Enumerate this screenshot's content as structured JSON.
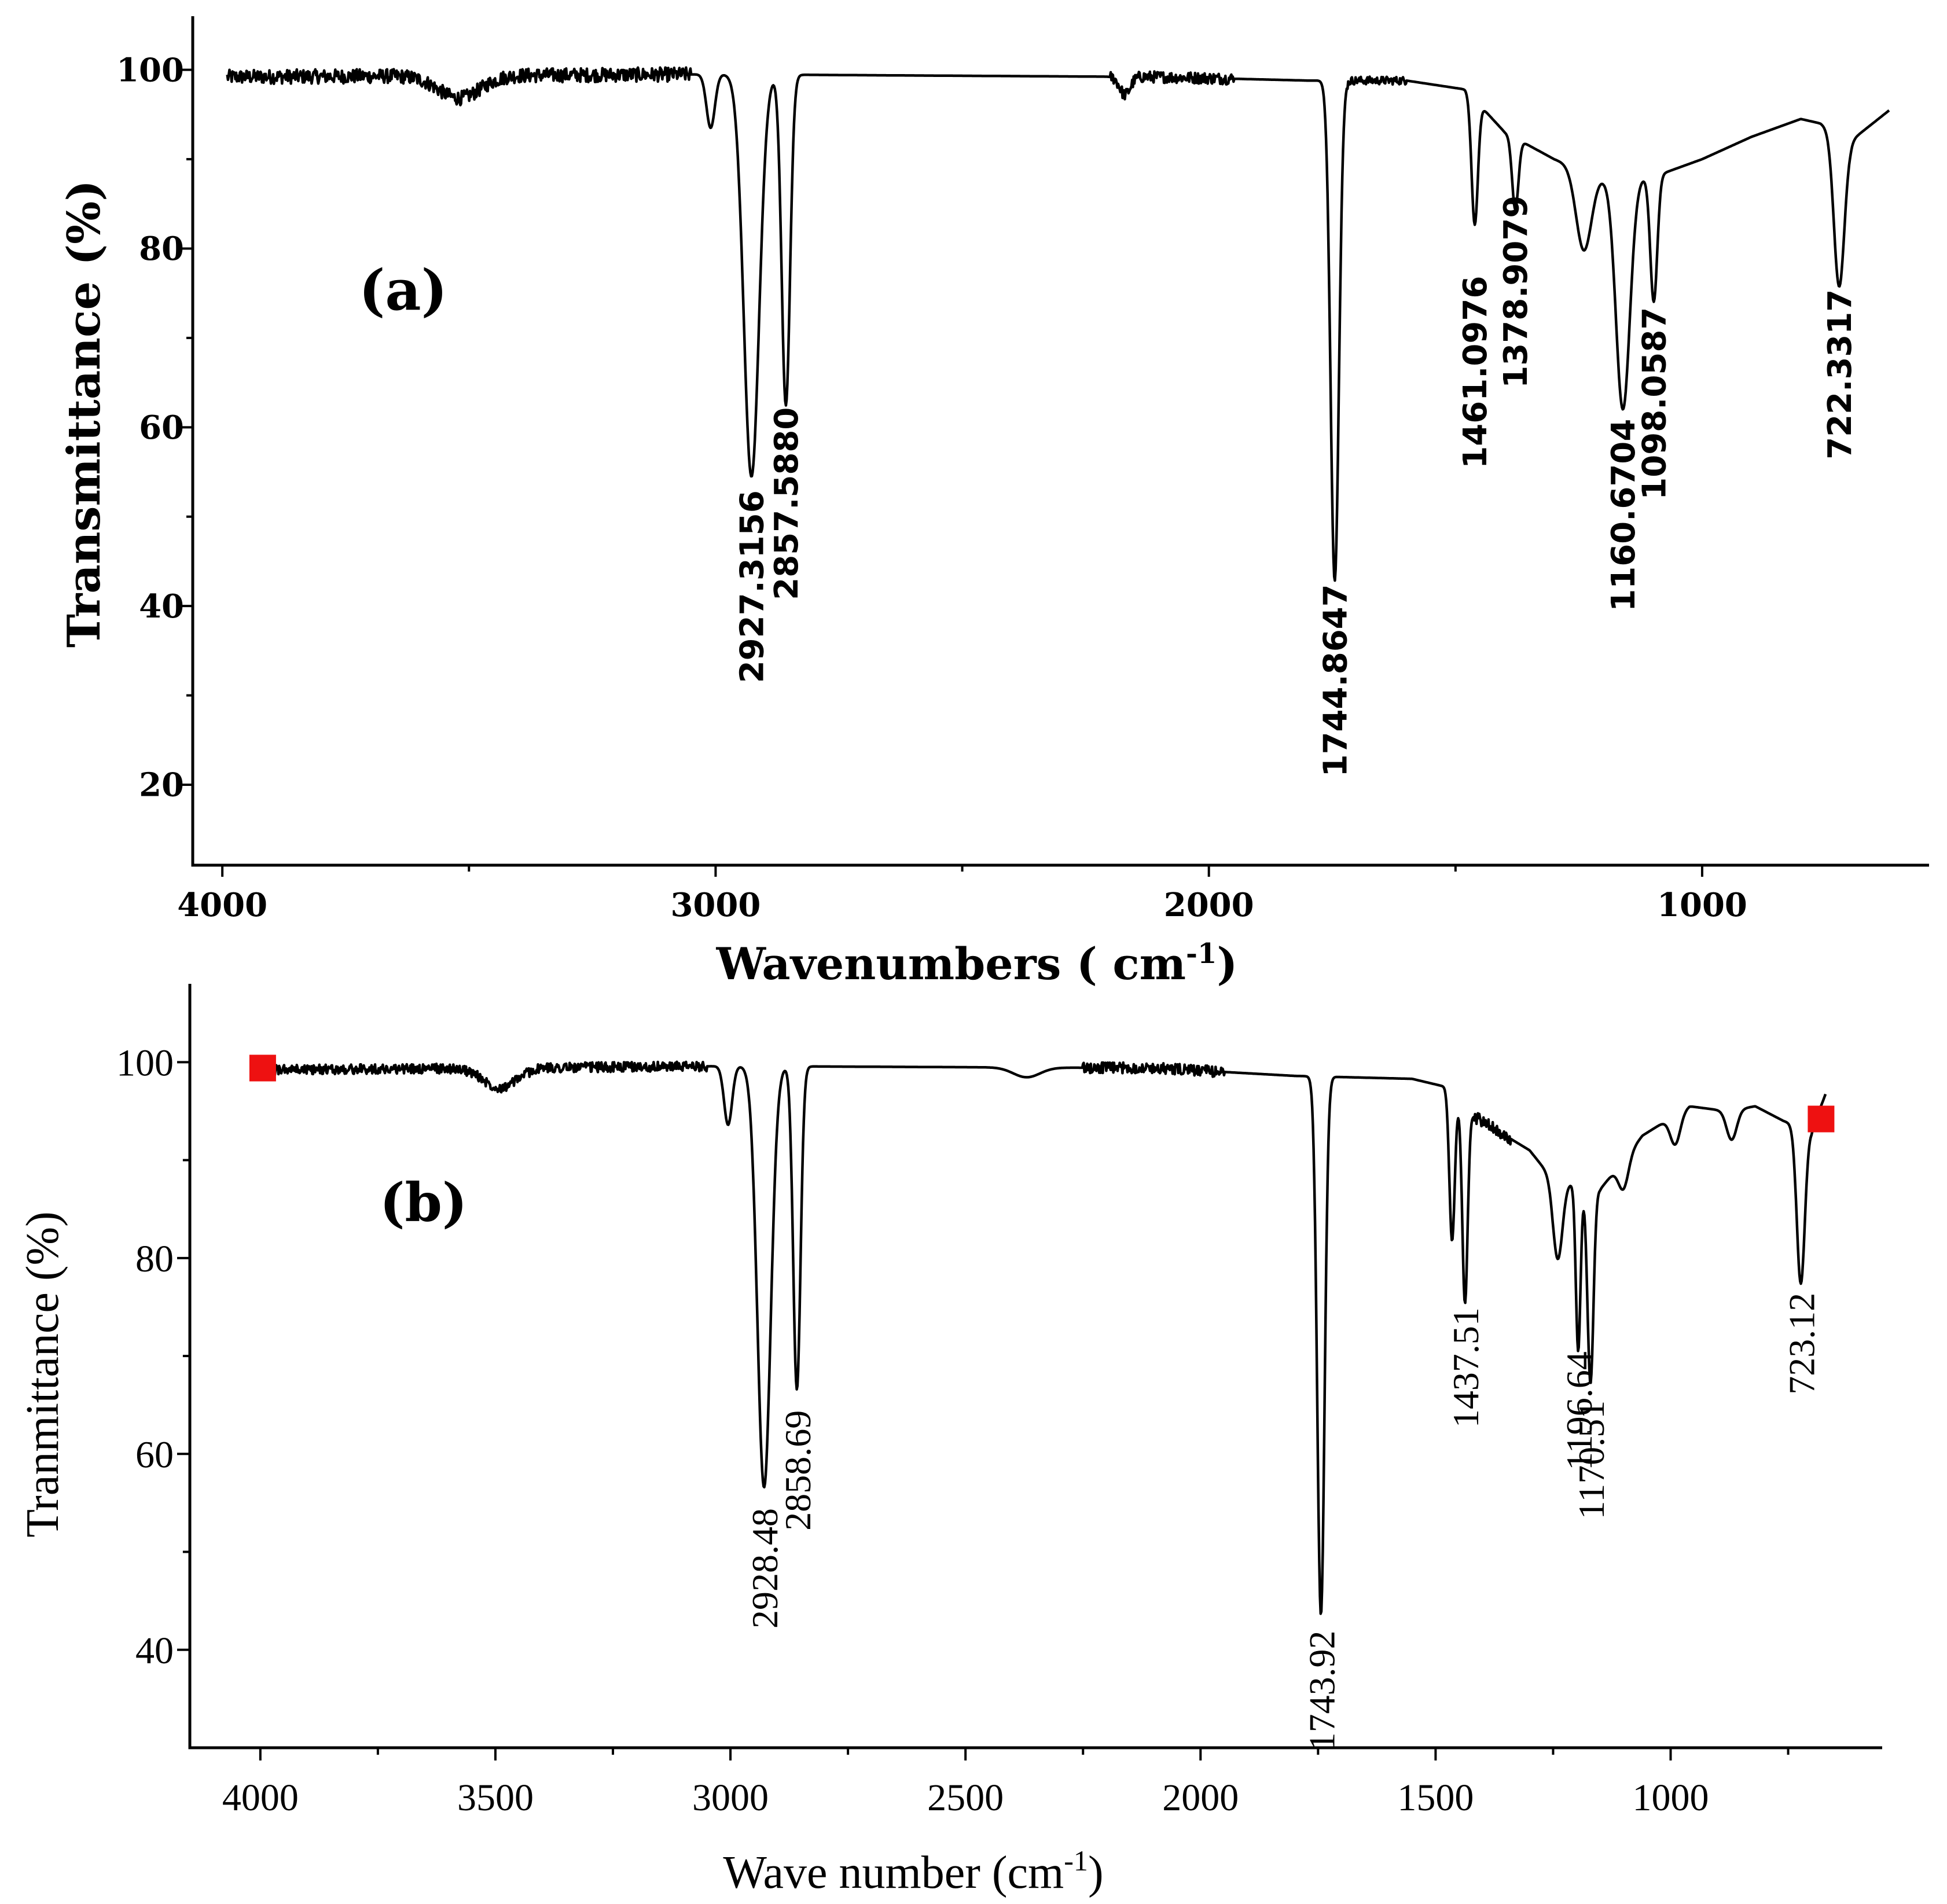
{
  "chart_data": [
    {
      "type": "line",
      "panel_label": "(a)",
      "xlabel": "Wavenumbers",
      "xlabel_unit": "( cm",
      "xlabel_exponent": "-1",
      "xlabel_close": ")",
      "ylabel": "Transmittance (%)",
      "xlim": [
        4060,
        540
      ],
      "ylim": [
        11,
        106
      ],
      "xticks": [
        4000,
        3000,
        2000,
        1000
      ],
      "xtick_labels": [
        "4000",
        "3000",
        "2000",
        "1000"
      ],
      "yticks": [
        20,
        40,
        60,
        80,
        100
      ],
      "ytick_labels": [
        "20",
        "40",
        "60",
        "80",
        "100"
      ],
      "noise": [
        [
          4000,
          3050,
          1.6
        ],
        [
          2200,
          1950,
          1.3
        ],
        [
          1720,
          1600,
          0.9
        ]
      ],
      "peaks": [
        {
          "x": 3010,
          "depth": 6,
          "width": 12
        },
        {
          "x": 2927.3156,
          "depth": 45,
          "width": 22
        },
        {
          "x": 2857.588,
          "depth": 37,
          "width": 12
        },
        {
          "x": 1744.8647,
          "depth": 56,
          "width": 12
        },
        {
          "x": 1461.0976,
          "depth": 14,
          "width": 9
        },
        {
          "x": 1378.9079,
          "depth": 8,
          "width": 9
        },
        {
          "x": 1240,
          "depth": 9,
          "width": 22
        },
        {
          "x": 1160.6704,
          "depth": 26,
          "width": 20
        },
        {
          "x": 1098.0587,
          "depth": 14,
          "width": 10
        },
        {
          "x": 722.3317,
          "depth": 17,
          "width": 15
        }
      ],
      "baseline": [
        [
          3990,
          99.2
        ],
        [
          3000,
          99.5
        ],
        [
          2100,
          99.2
        ],
        [
          1800,
          98.8
        ],
        [
          1600,
          98.8
        ],
        [
          1480,
          97.8
        ],
        [
          1400,
          93
        ],
        [
          1300,
          90
        ],
        [
          1200,
          88
        ],
        [
          1100,
          88
        ],
        [
          1000,
          90
        ],
        [
          900,
          92.5
        ],
        [
          800,
          94.5
        ],
        [
          760,
          94
        ],
        [
          700,
          92
        ],
        [
          620,
          95.5
        ]
      ],
      "dips": [
        {
          "x": 3520,
          "depth": 2.5,
          "width": 60
        },
        {
          "x": 2170,
          "depth": 2.0,
          "width": 15
        }
      ],
      "peak_labels": [
        {
          "x": 2927.3156,
          "y": 54.5,
          "text": "2927.3156"
        },
        {
          "x": 2857.588,
          "y": 63.8,
          "text": "2857.5880"
        },
        {
          "x": 1744.8647,
          "y": 44.0,
          "text": "1744.8647"
        },
        {
          "x": 1461.0976,
          "y": 78.5,
          "text": "1461.0976"
        },
        {
          "x": 1378.9079,
          "y": 87.5,
          "text": "1378.9079"
        },
        {
          "x": 1160.6704,
          "y": 62.5,
          "text": "1160.6704"
        },
        {
          "x": 1098.0587,
          "y": 75.0,
          "text": "1098.0587"
        },
        {
          "x": 722.3317,
          "y": 77.0,
          "text": "722.3317"
        }
      ]
    },
    {
      "type": "line",
      "panel_label": "(b)",
      "xlabel": "Wave number",
      "xlabel_unit": "(cm",
      "xlabel_exponent": "-1",
      "xlabel_close": ")",
      "ylabel": "Tranmittance (%)",
      "xlim": [
        4150,
        550
      ],
      "ylim": [
        30,
        108
      ],
      "xticks": [
        4000,
        3500,
        3000,
        2500,
        2000,
        1500,
        1000
      ],
      "xtick_labels": [
        "4000",
        "3500",
        "3000",
        "2500",
        "2000",
        "1500",
        "1000"
      ],
      "yticks": [
        40,
        60,
        80,
        100
      ],
      "ytick_labels": [
        "40",
        "60",
        "80",
        "100"
      ],
      "noise": [
        [
          3990,
          3050,
          1.0
        ],
        [
          2250,
          1950,
          1.1
        ],
        [
          1420,
          1340,
          1.2
        ]
      ],
      "peaks": [
        {
          "x": 3005,
          "depth": 6,
          "width": 12
        },
        {
          "x": 2928.48,
          "depth": 43,
          "width": 20
        },
        {
          "x": 2858.69,
          "depth": 33,
          "width": 11
        },
        {
          "x": 1743.92,
          "depth": 55,
          "width": 11
        },
        {
          "x": 1465,
          "depth": 15,
          "width": 8
        },
        {
          "x": 1437.51,
          "depth": 20,
          "width": 8
        },
        {
          "x": 1240,
          "depth": 8,
          "width": 14
        },
        {
          "x": 1196.64,
          "depth": 17,
          "width": 7
        },
        {
          "x": 1170.51,
          "depth": 20,
          "width": 9
        },
        {
          "x": 1100,
          "depth": 3,
          "width": 15
        },
        {
          "x": 990,
          "depth": 3,
          "width": 15
        },
        {
          "x": 870,
          "depth": 3,
          "width": 15
        },
        {
          "x": 723.12,
          "depth": 16,
          "width": 12
        }
      ],
      "baseline": [
        [
          3990,
          99.2
        ],
        [
          3000,
          99.6
        ],
        [
          2100,
          99.4
        ],
        [
          1800,
          98.6
        ],
        [
          1550,
          98.3
        ],
        [
          1480,
          97.5
        ],
        [
          1420,
          94.5
        ],
        [
          1300,
          91
        ],
        [
          1250,
          88
        ],
        [
          1150,
          87
        ],
        [
          1060,
          92.5
        ],
        [
          960,
          95.5
        ],
        [
          880,
          95
        ],
        [
          820,
          95.5
        ],
        [
          760,
          94
        ],
        [
          700,
          93
        ],
        [
          670,
          96.8
        ]
      ],
      "dips": [
        {
          "x": 3490,
          "depth": 2.0,
          "width": 50
        },
        {
          "x": 2370,
          "depth": 1.0,
          "width": 40
        }
      ],
      "markers": [
        {
          "x": 3995,
          "y": 99.4
        },
        {
          "x": 680,
          "y": 94.2
        }
      ],
      "peak_labels": [
        {
          "x": 2928.48,
          "y": 56.0,
          "text": "2928.48"
        },
        {
          "x": 2858.69,
          "y": 66.0,
          "text": "2858.69"
        },
        {
          "x": 1743.92,
          "y": 43.5,
          "text": "1743.92"
        },
        {
          "x": 1437.51,
          "y": 76.5,
          "text": "1437.51"
        },
        {
          "x": 1196.64,
          "y": 72.0,
          "text": "1196.64"
        },
        {
          "x": 1170.51,
          "y": 67.0,
          "text": "1170.51"
        },
        {
          "x": 723.12,
          "y": 78.0,
          "text": "723.12"
        }
      ]
    }
  ],
  "colors": {
    "marker": "#ee1111",
    "line": "#000000"
  }
}
